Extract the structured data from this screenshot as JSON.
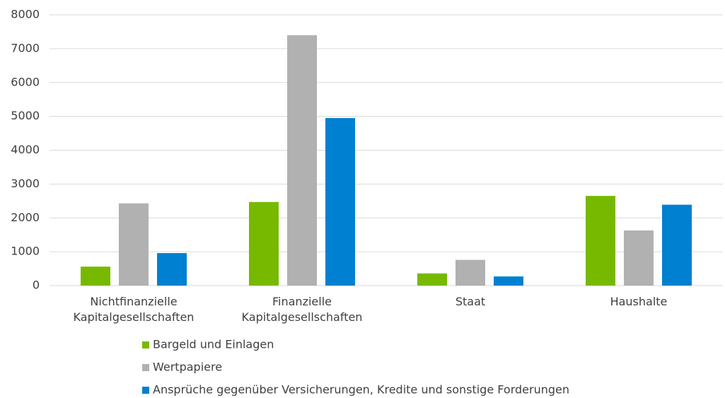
{
  "chart_data": {
    "type": "bar",
    "categories": [
      "Nichtfinanzielle Kapitalgesellschaften",
      "Finanzielle Kapitalgesellschaften",
      "Staat",
      "Haushalte"
    ],
    "series": [
      {
        "name": "Bargeld und Einlagen",
        "color": "#77b900",
        "values": [
          560,
          2470,
          360,
          2650
        ]
      },
      {
        "name": "Wertpapiere",
        "color": "#b1b1b1",
        "values": [
          2430,
          7400,
          760,
          1630
        ]
      },
      {
        "name": "Ansprüche gegenüber Versicherungen, Kredite und sonstige Forderungen",
        "color": "#0080d0",
        "values": [
          960,
          4950,
          270,
          2390
        ]
      }
    ],
    "ylim": [
      0,
      8000
    ],
    "yticks": [
      0,
      1000,
      2000,
      3000,
      4000,
      5000,
      6000,
      7000,
      8000
    ],
    "grid": true,
    "legend": "bottom"
  }
}
